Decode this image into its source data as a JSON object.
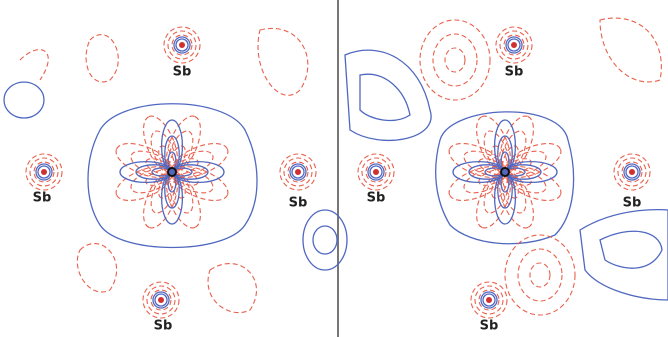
{
  "panels": [
    {
      "labels": [
        "Sb",
        "Sb",
        "Sb",
        "Sb"
      ]
    },
    {
      "labels": [
        "Sb",
        "Sb",
        "Sb",
        "Sb"
      ]
    }
  ]
}
